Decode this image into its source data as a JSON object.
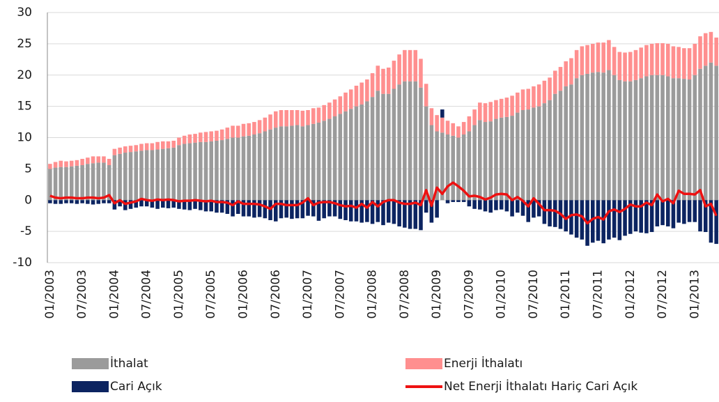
{
  "chart_data": {
    "type": "bar",
    "stacked": true,
    "grid": true,
    "ylim": [
      -10,
      30
    ],
    "yticks": [
      -10,
      -5,
      0,
      5,
      10,
      15,
      20,
      25,
      30
    ],
    "categories": [
      "01/2003",
      null,
      null,
      null,
      null,
      null,
      "07/2003",
      null,
      null,
      null,
      null,
      null,
      "01/2004",
      null,
      null,
      null,
      null,
      null,
      "07/2004",
      null,
      null,
      null,
      null,
      null,
      "01/2005",
      null,
      null,
      null,
      null,
      null,
      "07/2005",
      null,
      null,
      null,
      null,
      null,
      "01/2006",
      null,
      null,
      null,
      null,
      null,
      "07/2006",
      null,
      null,
      null,
      null,
      null,
      "01/2007",
      null,
      null,
      null,
      null,
      null,
      "07/2007",
      null,
      null,
      null,
      null,
      null,
      "01/2008",
      null,
      null,
      null,
      null,
      null,
      "07/2008",
      null,
      null,
      null,
      null,
      null,
      "01/2009",
      null,
      null,
      null,
      null,
      null,
      "07/2009",
      null,
      null,
      null,
      null,
      null,
      "01/2010",
      null,
      null,
      null,
      null,
      null,
      "07/2010",
      null,
      null,
      null,
      null,
      null,
      "01/2011",
      null,
      null,
      null,
      null,
      null,
      "07/2011",
      null,
      null,
      null,
      null,
      null,
      "01/2012",
      null,
      null,
      null,
      null,
      null,
      "07/2012",
      null,
      null,
      null,
      null,
      null,
      "01/2013",
      null,
      null,
      null,
      null
    ],
    "series": [
      {
        "name": "İthalat",
        "type": "bar",
        "color": "#9b9b9b",
        "values": [
          5,
          5.2,
          5.3,
          5.3,
          5.4,
          5.5,
          5.6,
          5.8,
          5.9,
          6,
          6,
          5.6,
          7.2,
          7.4,
          7.6,
          7.7,
          7.8,
          7.9,
          8,
          8,
          8.1,
          8.2,
          8.3,
          8.4,
          8.8,
          9,
          9.1,
          9.2,
          9.3,
          9.3,
          9.4,
          9.5,
          9.6,
          9.8,
          10,
          10,
          10.2,
          10.3,
          10.5,
          10.7,
          11,
          11.3,
          11.6,
          11.8,
          11.8,
          11.9,
          12,
          11.8,
          12,
          12.2,
          12.4,
          12.7,
          13,
          13.4,
          13.8,
          14.2,
          14.6,
          15,
          15.3,
          15.8,
          16.5,
          17.5,
          17,
          17,
          17.8,
          18.5,
          19,
          19,
          19,
          18,
          15,
          12,
          11,
          10.8,
          10.5,
          10.3,
          10,
          10.5,
          11,
          12,
          12.8,
          12.5,
          12.6,
          13,
          13.2,
          13.3,
          13.5,
          14,
          14.4,
          14.5,
          14.8,
          15,
          15.5,
          16,
          17,
          17.5,
          18.2,
          18.5,
          19.5,
          20,
          20.2,
          20.4,
          20.5,
          20.4,
          20.8,
          20,
          19.2,
          19,
          19,
          19.2,
          19.5,
          19.8,
          20,
          20,
          20,
          19.8,
          19.5,
          19.5,
          19.4,
          19.3,
          20,
          21,
          21.5,
          22,
          21.5
        ]
      },
      {
        "name": "Enerji İthalatı",
        "type": "bar",
        "color": "#ff8f8f",
        "values": [
          0.8,
          0.9,
          1,
          0.9,
          0.9,
          0.9,
          1,
          1,
          1.1,
          1,
          1,
          1,
          1,
          1,
          1,
          1,
          1,
          1.1,
          1.1,
          1.1,
          1.2,
          1.2,
          1.1,
          1.1,
          1.2,
          1.3,
          1.4,
          1.4,
          1.5,
          1.6,
          1.6,
          1.6,
          1.7,
          1.8,
          1.9,
          1.9,
          2,
          2,
          2,
          2.1,
          2.2,
          2.4,
          2.6,
          2.6,
          2.6,
          2.5,
          2.4,
          2.5,
          2.4,
          2.5,
          2.4,
          2.5,
          2.6,
          2.7,
          2.8,
          3,
          3.1,
          3.3,
          3.5,
          3.5,
          3.8,
          4,
          4,
          4.2,
          4.5,
          4.8,
          5,
          5,
          5,
          4.6,
          3.6,
          2.7,
          2.6,
          2.4,
          2.2,
          2,
          1.8,
          2,
          2.4,
          2.5,
          2.8,
          3,
          3.1,
          3,
          3,
          3.1,
          3.2,
          3.2,
          3.3,
          3.3,
          3.4,
          3.5,
          3.6,
          3.6,
          3.7,
          3.8,
          4,
          4.2,
          4.5,
          4.6,
          4.6,
          4.6,
          4.7,
          4.8,
          4.8,
          4.5,
          4.5,
          4.6,
          4.7,
          4.8,
          4.9,
          5,
          5,
          5.1,
          5.1,
          5.2,
          5.1,
          5,
          4.9,
          5,
          5,
          5.2,
          5.2,
          4.9,
          4.5
        ]
      },
      {
        "name": "Cari Açık",
        "type": "bar",
        "color": "#0c2461",
        "values": [
          -0.5,
          -0.6,
          -0.6,
          -0.5,
          -0.5,
          -0.6,
          -0.5,
          -0.6,
          -0.7,
          -0.6,
          -0.5,
          -0.5,
          -1.5,
          -1,
          -1.6,
          -1.4,
          -1.2,
          -1,
          -1,
          -1.2,
          -1.4,
          -1.2,
          -1.3,
          -1.2,
          -1.4,
          -1.5,
          -1.6,
          -1.4,
          -1.6,
          -1.8,
          -1.8,
          -2,
          -2,
          -2.2,
          -2.6,
          -2.2,
          -2.6,
          -2.6,
          -2.8,
          -2.7,
          -2.9,
          -3.2,
          -3.4,
          -2.9,
          -2.8,
          -3,
          -2.9,
          -2.9,
          -2.5,
          -2.6,
          -3.3,
          -2.9,
          -2.6,
          -2.6,
          -3,
          -3.2,
          -3.4,
          -3.4,
          -3.6,
          -3.5,
          -3.8,
          -3.5,
          -4,
          -3.6,
          -3.8,
          -4.2,
          -4.4,
          -4.6,
          -4.6,
          -4.8,
          -2,
          -3.6,
          -2.8,
          1.3,
          -0.5,
          -0.3,
          -0.3,
          -0.3,
          -1,
          -1.4,
          -1.5,
          -1.8,
          -2,
          -1.6,
          -1.5,
          -1.8,
          -2.6,
          -2,
          -2.5,
          -3.5,
          -2.8,
          -2.6,
          -3.8,
          -4.2,
          -4.3,
          -4.6,
          -5,
          -5.5,
          -6,
          -6.3,
          -7.3,
          -6.8,
          -6.5,
          -6.9,
          -6.3,
          -6,
          -6.4,
          -5.7,
          -5.4,
          -5,
          -5.2,
          -5.3,
          -5.1,
          -4.2,
          -4,
          -4.2,
          -4.5,
          -3.6,
          -3.8,
          -3.5,
          -3.5,
          -5,
          -5.1,
          -6.8,
          -7
        ]
      },
      {
        "name": "Net Enerji İthalatı Hariç Cari Açık",
        "type": "line",
        "color": "#ee1111",
        "values": [
          0.7,
          0.4,
          0.3,
          0.4,
          0.4,
          0.3,
          0.3,
          0.4,
          0.4,
          0.3,
          0.4,
          0.8,
          -0.5,
          0,
          -0.6,
          -0.4,
          -0.2,
          0.2,
          0,
          -0.1,
          0.1,
          0,
          0.1,
          0,
          -0.2,
          -0.1,
          -0.1,
          0,
          -0.1,
          -0.2,
          -0.1,
          -0.3,
          -0.3,
          -0.4,
          -0.8,
          -0.2,
          -0.6,
          -0.6,
          -0.6,
          -0.7,
          -1,
          -1.4,
          -0.6,
          -0.6,
          -0.8,
          -0.8,
          -0.8,
          -0.4,
          0.3,
          -0.8,
          -0.4,
          -0.3,
          -0.3,
          -0.5,
          -0.8,
          -1,
          -0.9,
          -1.2,
          -0.6,
          -1.2,
          -0.3,
          -1,
          -0.3,
          0,
          0,
          -0.4,
          -0.6,
          -0.6,
          -0.4,
          -0.8,
          1.6,
          -0.9,
          2,
          1,
          2.2,
          2.8,
          2.2,
          1.5,
          0.6,
          0.7,
          0.5,
          0.1,
          0.4,
          0.9,
          1,
          0.9,
          0,
          0.5,
          -0.1,
          -1,
          0.3,
          -0.6,
          -1.6,
          -1.6,
          -1.7,
          -2.2,
          -3,
          -2.4,
          -2.3,
          -2.6,
          -3.7,
          -3,
          -2.7,
          -3.1,
          -1.8,
          -1.5,
          -1.9,
          -1.4,
          -0.7,
          -1,
          -1,
          -0.4,
          -0.8,
          0.9,
          -0.2,
          0.2,
          -0.5,
          1.5,
          1,
          1,
          0.9,
          1.6,
          -1,
          -0.6,
          -2.5
        ]
      }
    ]
  }
}
